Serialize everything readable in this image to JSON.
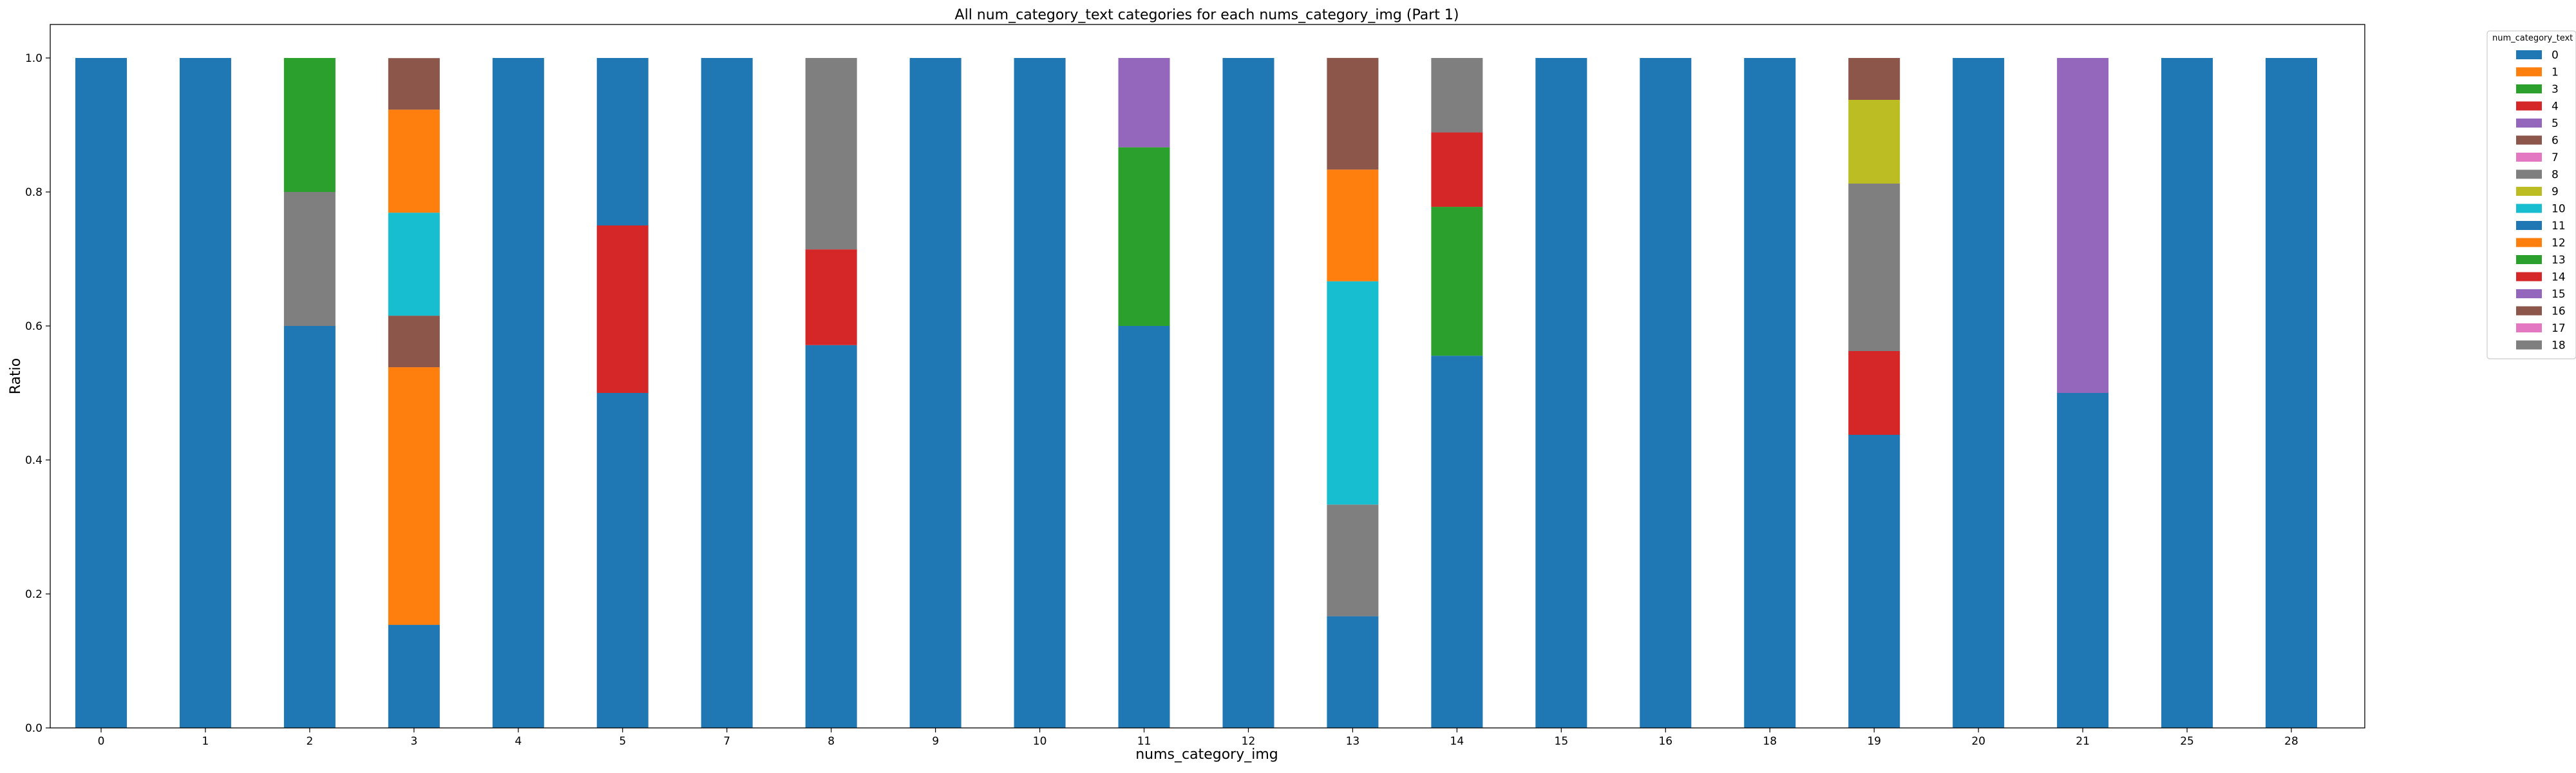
{
  "chart_data": {
    "type": "bar",
    "stacked": true,
    "title": "All num_category_text categories for each nums_category_img (Part 1)",
    "xlabel": "nums_category_img",
    "ylabel": "Ratio",
    "ylim": [
      0,
      1.05
    ],
    "yticks": [
      "0.0",
      "0.2",
      "0.4",
      "0.6",
      "0.8",
      "1.0"
    ],
    "grid": false,
    "legend_position": "outside-right-top",
    "legend_title": "num_category_text",
    "categories": [
      "0",
      "1",
      "2",
      "3",
      "4",
      "5",
      "7",
      "8",
      "9",
      "10",
      "11",
      "12",
      "13",
      "14",
      "15",
      "16",
      "18",
      "19",
      "20",
      "21",
      "25",
      "28"
    ],
    "series": [
      {
        "name": "0",
        "color": "#1f77b4",
        "values": [
          1,
          1,
          0.6,
          0.1538,
          1,
          0.5,
          1,
          0.5714,
          1,
          1,
          0.6,
          1,
          0.1667,
          0.5556,
          1,
          1,
          1,
          0.4375,
          1,
          0.5,
          1,
          1
        ]
      },
      {
        "name": "1",
        "color": "#ff7f0e",
        "values": [
          0,
          0,
          0,
          0.3846,
          0,
          0,
          0,
          0,
          0,
          0,
          0,
          0,
          0,
          0,
          0,
          0,
          0,
          0,
          0,
          0,
          0,
          0
        ]
      },
      {
        "name": "3",
        "color": "#2ca02c",
        "values": [
          0,
          0,
          0,
          0,
          0,
          0,
          0,
          0,
          0,
          0,
          0,
          0,
          0,
          0,
          0,
          0,
          0,
          0,
          0,
          0,
          0,
          0
        ]
      },
      {
        "name": "4",
        "color": "#d62728",
        "values": [
          0,
          0,
          0,
          0,
          0,
          0.25,
          0,
          0.1429,
          0,
          0,
          0,
          0,
          0,
          0,
          0,
          0,
          0,
          0.125,
          0,
          0,
          0,
          0
        ]
      },
      {
        "name": "5",
        "color": "#9467bd",
        "values": [
          0,
          0,
          0,
          0,
          0,
          0,
          0,
          0,
          0,
          0,
          0,
          0,
          0,
          0,
          0,
          0,
          0,
          0,
          0,
          0.5,
          0,
          0
        ]
      },
      {
        "name": "6",
        "color": "#8c564b",
        "values": [
          0,
          0,
          0,
          0.0769,
          0,
          0,
          0,
          0,
          0,
          0,
          0,
          0,
          0,
          0,
          0,
          0,
          0,
          0,
          0,
          0,
          0,
          0
        ]
      },
      {
        "name": "7",
        "color": "#e377c2",
        "values": [
          0,
          0,
          0,
          0,
          0,
          0,
          0,
          0,
          0,
          0,
          0,
          0,
          0,
          0,
          0,
          0,
          0,
          0,
          0,
          0,
          0,
          0
        ]
      },
      {
        "name": "8",
        "color": "#7f7f7f",
        "values": [
          0,
          0,
          0.2,
          0,
          0,
          0,
          0,
          0.2857,
          0,
          0,
          0,
          0,
          0.1667,
          0,
          0,
          0,
          0,
          0.25,
          0,
          0,
          0,
          0
        ]
      },
      {
        "name": "9",
        "color": "#bcbd22",
        "values": [
          0,
          0,
          0,
          0,
          0,
          0,
          0,
          0,
          0,
          0,
          0,
          0,
          0,
          0,
          0,
          0,
          0,
          0.125,
          0,
          0,
          0,
          0
        ]
      },
      {
        "name": "10",
        "color": "#17becf",
        "values": [
          0,
          0,
          0,
          0.1538,
          0,
          0,
          0,
          0,
          0,
          0,
          0,
          0,
          0.3333,
          0,
          0,
          0,
          0,
          0,
          0,
          0,
          0,
          0
        ]
      },
      {
        "name": "11",
        "color": "#1f77b4",
        "values": [
          0,
          0,
          0,
          0,
          0,
          0.25,
          0,
          0,
          0,
          0,
          0,
          0,
          0,
          0,
          0,
          0,
          0,
          0,
          0,
          0,
          0,
          0
        ]
      },
      {
        "name": "12",
        "color": "#ff7f0e",
        "values": [
          0,
          0,
          0,
          0.1538,
          0,
          0,
          0,
          0,
          0,
          0,
          0,
          0,
          0.1667,
          0,
          0,
          0,
          0,
          0,
          0,
          0,
          0,
          0
        ]
      },
      {
        "name": "13",
        "color": "#2ca02c",
        "values": [
          0,
          0,
          0.2,
          0,
          0,
          0,
          0,
          0,
          0,
          0,
          0.2667,
          0,
          0,
          0.2222,
          0,
          0,
          0,
          0,
          0,
          0,
          0,
          0
        ]
      },
      {
        "name": "14",
        "color": "#d62728",
        "values": [
          0,
          0,
          0,
          0,
          0,
          0,
          0,
          0,
          0,
          0,
          0,
          0,
          0,
          0.1111,
          0,
          0,
          0,
          0,
          0,
          0,
          0,
          0
        ]
      },
      {
        "name": "15",
        "color": "#9467bd",
        "values": [
          0,
          0,
          0,
          0,
          0,
          0,
          0,
          0,
          0,
          0,
          0.1333,
          0,
          0,
          0,
          0,
          0,
          0,
          0,
          0,
          0,
          0,
          0
        ]
      },
      {
        "name": "16",
        "color": "#8c564b",
        "values": [
          0,
          0,
          0,
          0.0769,
          0,
          0,
          0,
          0,
          0,
          0,
          0,
          0,
          0.1667,
          0,
          0,
          0,
          0,
          0.0625,
          0,
          0,
          0,
          0
        ]
      },
      {
        "name": "17",
        "color": "#e377c2",
        "values": [
          0,
          0,
          0,
          0,
          0,
          0,
          0,
          0,
          0,
          0,
          0,
          0,
          0,
          0,
          0,
          0,
          0,
          0,
          0,
          0,
          0,
          0
        ]
      },
      {
        "name": "18",
        "color": "#7f7f7f",
        "values": [
          0,
          0,
          0,
          0,
          0,
          0,
          0,
          0,
          0,
          0,
          0,
          0,
          0,
          0.1111,
          0,
          0,
          0,
          0,
          0,
          0,
          0,
          0
        ]
      }
    ]
  }
}
